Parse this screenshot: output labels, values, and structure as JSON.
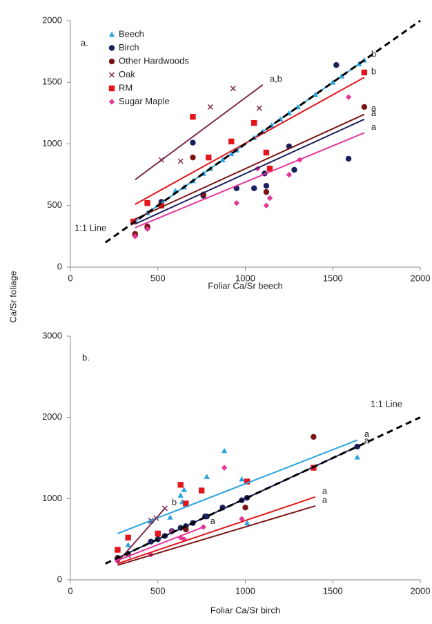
{
  "chart_data": [
    {
      "type": "scatter",
      "panel_label": "a.",
      "xlabel": "Foliar Ca/Sr beech",
      "ylabel": "Ca/Sr foliage",
      "xlim": [
        0,
        2000
      ],
      "xticks": [
        0,
        500,
        1000,
        1500,
        2000
      ],
      "ylim": [
        0,
        2000
      ],
      "yticks": [
        0,
        500,
        1000,
        1500,
        2000
      ],
      "grid": false,
      "legend": "upper left",
      "identity_line": {
        "label": "1:1 Line",
        "x": [
          200,
          2000
        ]
      },
      "series": [
        {
          "name": "Beech",
          "color": "#29a3e0",
          "marker": "triangle",
          "x": [
            370,
            440,
            520,
            600,
            650,
            700,
            760,
            800,
            870,
            920,
            950,
            1050,
            1100,
            1150,
            1200,
            1250,
            1300,
            1400,
            1500,
            1550,
            1650,
            1680
          ],
          "y": [
            370,
            440,
            520,
            620,
            650,
            700,
            760,
            800,
            870,
            920,
            950,
            1050,
            1100,
            1150,
            1200,
            1250,
            1300,
            1400,
            1500,
            1550,
            1650,
            1680
          ],
          "fit": {
            "x": [
              370,
              1680
            ],
            "y": [
              370,
              1680
            ],
            "label": "b"
          }
        },
        {
          "name": "Birch",
          "color": "#1a1f5e",
          "marker": "circle",
          "x": [
            370,
            440,
            520,
            700,
            760,
            950,
            1050,
            1110,
            1120,
            1250,
            1280,
            1520,
            1590
          ],
          "y": [
            260,
            320,
            530,
            1010,
            580,
            640,
            640,
            760,
            660,
            980,
            790,
            1640,
            880
          ],
          "fit": {
            "x": [
              370,
              1680
            ],
            "y": [
              350,
              1200
            ],
            "label": "a"
          }
        },
        {
          "name": "Other Hardwoods",
          "color": "#7a1414",
          "marker": "circle",
          "x": [
            370,
            440,
            700,
            760,
            1120,
            1680
          ],
          "y": [
            270,
            330,
            890,
            590,
            610,
            1300
          ],
          "fit": {
            "x": [
              370,
              1680
            ],
            "y": [
              390,
              1240
            ],
            "label": "a"
          }
        },
        {
          "name": "Oak",
          "color": "#7d2b4e",
          "marker": "x",
          "x": [
            520,
            630,
            800,
            930,
            1080
          ],
          "y": [
            870,
            860,
            1300,
            1450,
            1290
          ],
          "fit": {
            "x": [
              370,
              1100
            ],
            "y": [
              710,
              1480
            ],
            "label": "a,b"
          }
        },
        {
          "name": "RM",
          "color": "#e5141b",
          "marker": "square",
          "x": [
            360,
            440,
            520,
            700,
            790,
            920,
            1050,
            1120,
            1140,
            1680
          ],
          "y": [
            370,
            520,
            500,
            1220,
            890,
            1020,
            1170,
            930,
            800,
            1580
          ],
          "fit": {
            "x": [
              370,
              1680
            ],
            "y": [
              510,
              1540
            ],
            "label": "b"
          }
        },
        {
          "name": "Sugar Maple",
          "color": "#e6359a",
          "marker": "diamond",
          "x": [
            370,
            440,
            950,
            1070,
            1120,
            1140,
            1250,
            1310,
            1590
          ],
          "y": [
            250,
            310,
            520,
            800,
            500,
            560,
            750,
            870,
            1380
          ],
          "fit": {
            "x": [
              370,
              1680
            ],
            "y": [
              320,
              1090
            ],
            "label": "a"
          }
        }
      ]
    },
    {
      "type": "scatter",
      "panel_label": "b.",
      "xlabel": "Foliar Ca/Sr birch",
      "xlim": [
        0,
        2000
      ],
      "xticks": [
        0,
        500,
        1000,
        1500,
        2000
      ],
      "ylim": [
        0,
        3000
      ],
      "yticks": [
        0,
        1000,
        2000,
        3000
      ],
      "grid": false,
      "identity_line": {
        "label": "1:1 Line",
        "x": [
          200,
          2000
        ]
      },
      "series": [
        {
          "color": "#29a3e0",
          "marker": "triangle",
          "x": [
            330,
            460,
            570,
            630,
            640,
            650,
            780,
            880,
            980,
            1010,
            1640
          ],
          "y": [
            430,
            720,
            770,
            1040,
            960,
            1110,
            1270,
            1590,
            1240,
            700,
            1510
          ],
          "fit": {
            "x": [
              270,
              1640
            ],
            "y": [
              570,
              1720
            ],
            "label": "a"
          }
        },
        {
          "color": "#1a1f5e",
          "marker": "circle",
          "x": [
            270,
            330,
            460,
            500,
            540,
            580,
            630,
            660,
            700,
            770,
            780,
            870,
            980,
            1010,
            1640
          ],
          "y": [
            270,
            320,
            470,
            500,
            540,
            600,
            640,
            660,
            700,
            780,
            780,
            890,
            980,
            1010,
            1640
          ],
          "fit": {
            "x": [
              270,
              1640
            ],
            "y": [
              270,
              1640
            ],
            "label": "a"
          }
        },
        {
          "color": "#7a1414",
          "marker": "circle",
          "x": [
            270,
            500,
            660,
            1000,
            1390
          ],
          "y": [
            260,
            560,
            620,
            890,
            1760
          ],
          "fit": {
            "x": [
              270,
              1400
            ],
            "y": [
              180,
              910
            ],
            "label": "a"
          }
        },
        {
          "color": "#7d2b4e",
          "marker": "x",
          "x": [
            330,
            460,
            490,
            540
          ],
          "y": [
            300,
            730,
            760,
            880
          ],
          "fit": {
            "x": [
              270,
              540
            ],
            "y": [
              220,
              880
            ],
            "label": "b"
          }
        },
        {
          "color": "#e5141b",
          "marker": "square",
          "x": [
            270,
            330,
            500,
            630,
            660,
            750,
            1010,
            1390
          ],
          "y": [
            370,
            520,
            570,
            1170,
            940,
            1100,
            1210,
            1380
          ],
          "fit": {
            "x": [
              270,
              1400
            ],
            "y": [
              200,
              1020
            ],
            "label": "a"
          }
        },
        {
          "color": "#e6359a",
          "marker": "diamond",
          "x": [
            270,
            460,
            580,
            630,
            650,
            760,
            880,
            980
          ],
          "y": [
            230,
            310,
            590,
            520,
            500,
            650,
            1380,
            750
          ],
          "fit": {
            "x": [
              270,
              760
            ],
            "y": [
              240,
              650
            ],
            "label": "a"
          }
        }
      ]
    }
  ]
}
